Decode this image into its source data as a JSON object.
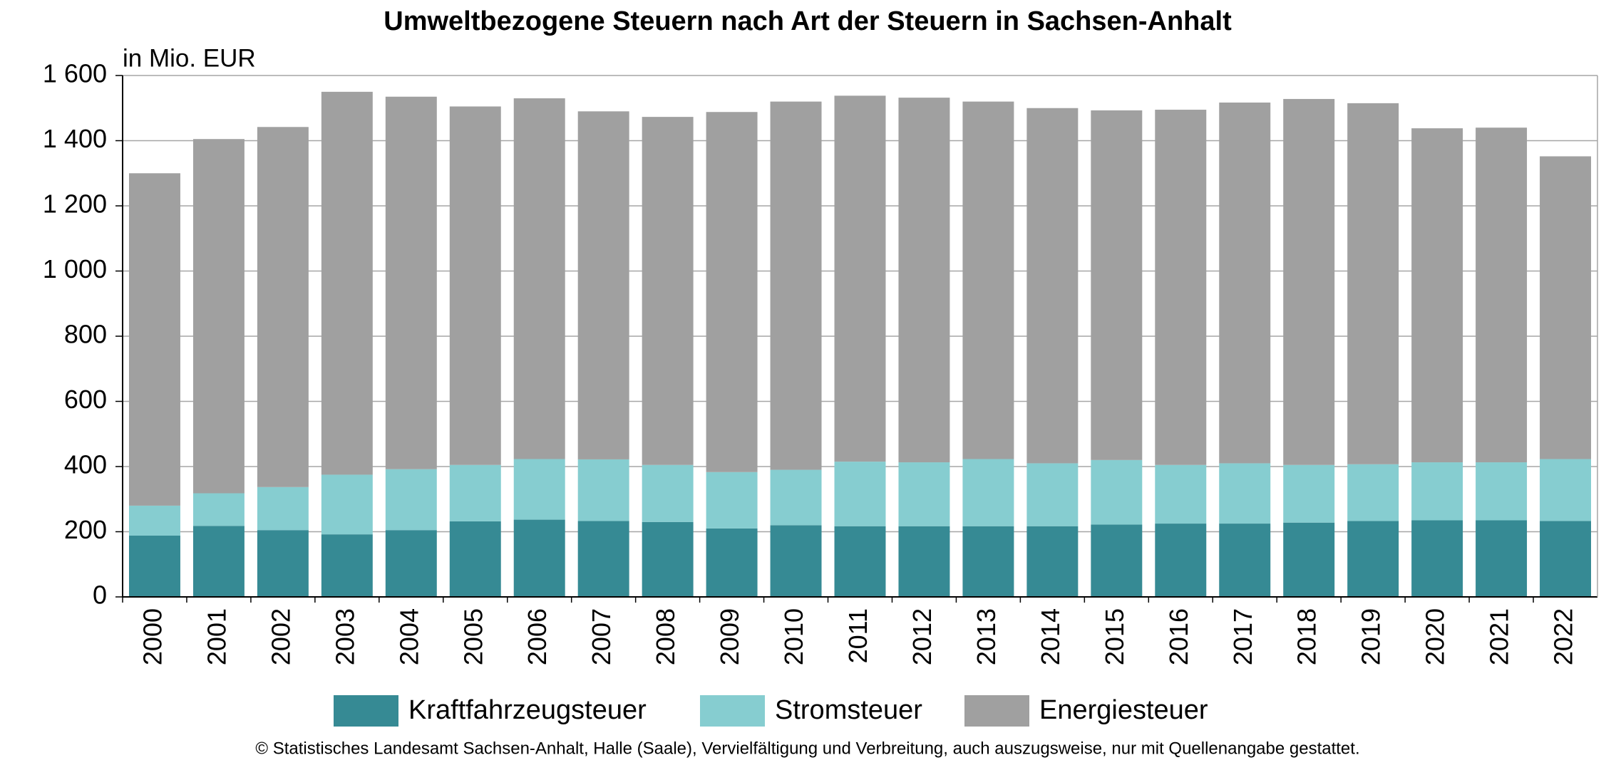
{
  "chart_data": {
    "type": "stacked_bar",
    "title": "Umweltbezogene Steuern nach Art der Steuern in Sachsen-Anhalt",
    "y_label": "in Mio. EUR",
    "footer": "© Statistisches Landesamt Sachsen-Anhalt, Halle (Saale), Vervielfältigung und Verbreitung, auch auszugsweise, nur mit Quellenangabe gestattet.",
    "categories": [
      "2000",
      "2001",
      "2002",
      "2003",
      "2004",
      "2005",
      "2006",
      "2007",
      "2008",
      "2009",
      "2010",
      "2011",
      "2012",
      "2013",
      "2014",
      "2015",
      "2016",
      "2017",
      "2018",
      "2019",
      "2020",
      "2021",
      "2022"
    ],
    "series": [
      {
        "name": "Kraftfahrzeugsteuer",
        "color": "#368a94",
        "values": [
          188,
          218,
          205,
          192,
          205,
          232,
          237,
          233,
          230,
          210,
          220,
          217,
          217,
          217,
          217,
          222,
          225,
          225,
          228,
          233,
          235,
          235,
          233
        ]
      },
      {
        "name": "Stromsteuer",
        "color": "#86cdd0",
        "values": [
          92,
          100,
          132,
          183,
          187,
          173,
          186,
          189,
          175,
          173,
          170,
          198,
          196,
          206,
          193,
          198,
          180,
          185,
          177,
          174,
          178,
          178,
          190
        ]
      },
      {
        "name": "Energiesteuer",
        "color": "#a0a0a0",
        "values": [
          1020,
          1087,
          1105,
          1175,
          1143,
          1100,
          1107,
          1068,
          1068,
          1105,
          1130,
          1123,
          1119,
          1097,
          1090,
          1073,
          1090,
          1107,
          1123,
          1108,
          1025,
          1027,
          929
        ]
      }
    ],
    "ylim": [
      0,
      1600
    ],
    "yticks": [
      0,
      200,
      400,
      600,
      800,
      {
        "value": 1000,
        "label": "1 000"
      },
      {
        "value": 1200,
        "label": "1 200"
      },
      {
        "value": 1400,
        "label": "1 400"
      },
      {
        "value": 1600,
        "label": "1 600"
      }
    ],
    "grid": true
  }
}
